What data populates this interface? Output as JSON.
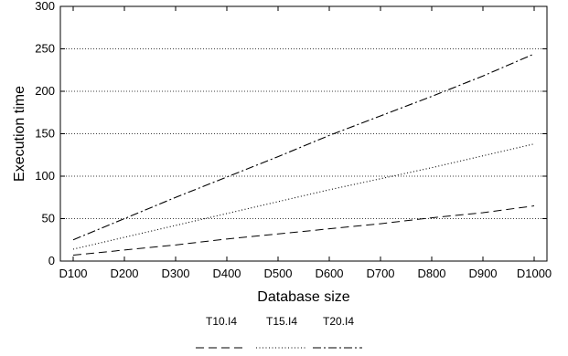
{
  "chart_data": {
    "type": "line",
    "xlabel": "Database size",
    "ylabel": "Execution time",
    "categories": [
      "D100",
      "D200",
      "D300",
      "D400",
      "D500",
      "D600",
      "D700",
      "D800",
      "D900",
      "D1000"
    ],
    "ylim": [
      0,
      300
    ],
    "yticks": [
      0,
      50,
      100,
      150,
      200,
      250,
      300
    ],
    "grid": "horizontal-dotted",
    "legend_position": "bottom",
    "series": [
      {
        "name": "T10.I4",
        "style": "dashed",
        "color": "#000000",
        "values": [
          7,
          13,
          19,
          26,
          32,
          38,
          44,
          51,
          57,
          65
        ]
      },
      {
        "name": "T15.I4",
        "style": "dotted",
        "color": "#000000",
        "values": [
          14,
          28,
          42,
          56,
          70,
          84,
          97,
          110,
          124,
          138
        ]
      },
      {
        "name": "T20.I4",
        "style": "dashdot",
        "color": "#000000",
        "values": [
          25,
          50,
          75,
          99,
          123,
          148,
          171,
          194,
          218,
          244
        ]
      }
    ]
  }
}
